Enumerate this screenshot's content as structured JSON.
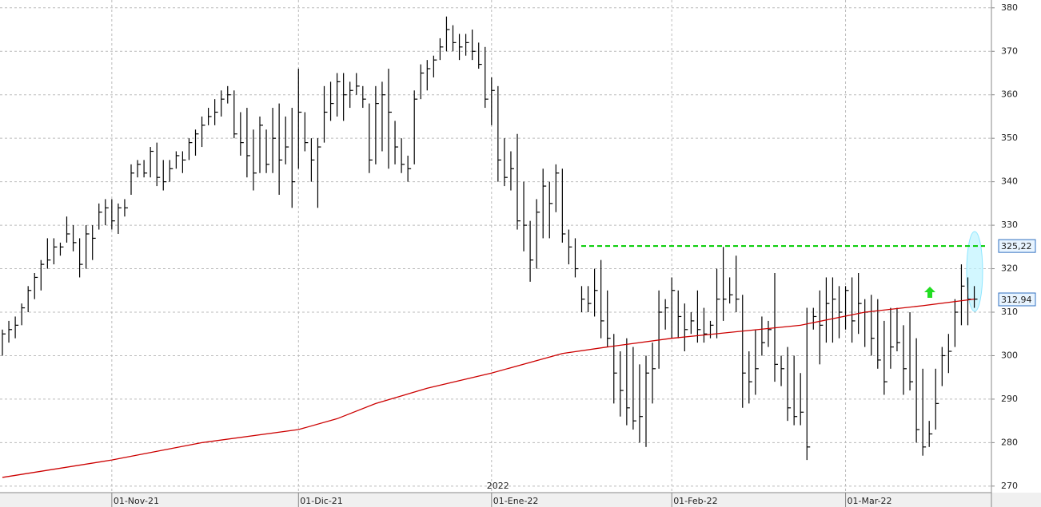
{
  "chart_data": {
    "type": "ohlc",
    "color": "#000000",
    "categories": [
      null,
      null,
      null,
      null,
      null,
      null,
      null,
      null,
      null,
      null,
      null,
      null,
      null,
      null,
      null,
      null,
      null,
      "01-Nov-21",
      null,
      null,
      null,
      null,
      null,
      null,
      null,
      null,
      null,
      null,
      null,
      null,
      null,
      null,
      null,
      null,
      null,
      null,
      null,
      null,
      null,
      null,
      null,
      null,
      null,
      null,
      null,
      null,
      "01-Dic-21",
      null,
      null,
      null,
      null,
      null,
      null,
      null,
      null,
      null,
      null,
      null,
      null,
      null,
      null,
      null,
      null,
      null,
      null,
      null,
      null,
      null,
      null,
      null,
      null,
      null,
      null,
      null,
      null,
      null,
      "01-Ene-22",
      null,
      null,
      null,
      null,
      null,
      null,
      null,
      null,
      null,
      null,
      null,
      null,
      null,
      null,
      null,
      null,
      null,
      null,
      null,
      null,
      null,
      null,
      null,
      null,
      null,
      null,
      null,
      "01-Feb-22",
      null,
      null,
      null,
      null,
      null,
      null,
      null,
      null,
      null,
      null,
      null,
      null,
      null,
      null,
      null,
      null,
      null,
      null,
      null,
      null,
      null,
      null,
      null,
      null,
      null,
      null,
      "01-Mar-22",
      null,
      null,
      null,
      null,
      null,
      null,
      null,
      null,
      null,
      null,
      null,
      null,
      null,
      null,
      null,
      null,
      null,
      null,
      null,
      null
    ],
    "high": [
      306,
      308,
      309,
      312,
      316,
      319,
      322,
      327,
      327,
      326,
      332,
      330,
      327,
      330,
      330,
      335,
      336,
      336,
      335,
      336,
      344,
      345,
      345,
      348,
      349,
      345,
      345,
      347,
      347,
      350,
      352,
      355,
      357,
      359,
      361,
      362,
      361,
      356,
      357,
      352,
      355,
      352,
      357,
      358,
      355,
      357,
      366,
      356,
      350,
      350,
      362,
      363,
      365,
      365,
      363,
      365,
      362,
      358,
      362,
      363,
      366,
      354,
      350,
      346,
      361,
      367,
      368,
      369,
      373,
      378,
      376,
      374,
      374,
      375,
      372,
      371,
      364,
      362,
      350,
      347,
      351,
      340,
      331,
      336,
      343,
      340,
      344,
      343,
      329,
      327,
      316,
      316,
      320,
      322,
      315,
      305,
      301,
      304,
      302,
      298,
      300,
      303,
      315,
      313,
      318,
      315,
      312,
      310,
      315,
      311,
      308,
      320,
      325,
      318,
      323,
      314,
      301,
      306,
      309,
      308,
      319,
      300,
      302,
      300,
      296,
      311,
      311,
      315,
      318,
      318,
      316,
      316,
      318,
      319,
      313,
      314,
      313,
      308,
      311,
      311,
      307,
      310,
      304,
      297,
      285,
      297,
      302,
      305,
      313,
      321,
      318,
      316
    ],
    "low": [
      300,
      303,
      304,
      307,
      310,
      313,
      315,
      320,
      321,
      323,
      326,
      324,
      318,
      320,
      322,
      329,
      330,
      329,
      328,
      332,
      337,
      341,
      341,
      341,
      339,
      338,
      340,
      343,
      342,
      345,
      346,
      348,
      353,
      353,
      355,
      358,
      350,
      346,
      341,
      338,
      342,
      342,
      342,
      337,
      344,
      334,
      343,
      347,
      340,
      334,
      349,
      354,
      355,
      354,
      357,
      360,
      357,
      342,
      344,
      347,
      343,
      344,
      342,
      340,
      344,
      359,
      361,
      364,
      368,
      370,
      370,
      368,
      369,
      368,
      366,
      357,
      353,
      340,
      339,
      338,
      329,
      324,
      317,
      320,
      327,
      327,
      333,
      326,
      321,
      318,
      310,
      310,
      309,
      304,
      302,
      289,
      286,
      284,
      283,
      280,
      279,
      289,
      297,
      306,
      304,
      304,
      301,
      305,
      303,
      303,
      304,
      304,
      308,
      312,
      310,
      288,
      289,
      291,
      300,
      302,
      294,
      293,
      285,
      284,
      284,
      276,
      306,
      298,
      303,
      303,
      304,
      306,
      303,
      305,
      302,
      300,
      297,
      291,
      297,
      301,
      291,
      292,
      280,
      277,
      279,
      283,
      293,
      296,
      302,
      307,
      307,
      311
    ],
    "close": [
      305,
      306,
      307,
      311,
      315,
      318,
      321,
      322,
      325,
      325,
      328,
      326,
      321,
      328,
      327,
      333,
      334,
      331,
      334,
      334,
      342,
      344,
      342,
      347,
      341,
      340,
      343,
      346,
      345,
      349,
      351,
      353,
      355,
      356,
      359,
      360,
      351,
      349,
      346,
      342,
      353,
      344,
      350,
      345,
      348,
      340,
      356,
      349,
      345,
      348,
      356,
      358,
      363,
      360,
      361,
      362,
      359,
      345,
      358,
      360,
      356,
      348,
      344,
      343,
      359,
      365,
      366,
      368,
      371,
      375,
      372,
      371,
      372,
      370,
      367,
      359,
      361,
      345,
      341,
      343,
      331,
      330,
      322,
      333,
      339,
      335,
      342,
      328,
      325,
      320,
      313,
      312,
      315,
      308,
      304,
      296,
      292,
      288,
      285,
      286,
      296,
      297,
      310,
      311,
      315,
      309,
      306,
      308,
      306,
      305,
      307,
      313,
      313,
      314,
      313,
      296,
      294,
      297,
      303,
      306,
      298,
      297,
      288,
      286,
      287,
      279,
      309,
      307,
      312,
      313,
      310,
      315,
      308,
      312,
      310,
      304,
      299,
      294,
      302,
      303,
      297,
      294,
      283,
      279,
      282,
      289,
      300,
      301,
      310,
      316,
      313,
      313
    ],
    "ylim": [
      268.5,
      381.8
    ],
    "yticks": [
      270,
      280,
      290,
      300,
      310,
      320,
      330,
      340,
      350,
      360,
      370,
      380
    ],
    "grid": true,
    "year_label": "2022",
    "moving_average": {
      "color": "#cc0000",
      "x": [
        0,
        17,
        31,
        46,
        52,
        58,
        66,
        76,
        87,
        94,
        104,
        114,
        124,
        134,
        143,
        151
      ],
      "values": [
        272,
        276,
        280,
        283,
        285.5,
        289,
        292.5,
        296,
        300.5,
        302,
        304,
        305.5,
        307,
        310,
        311.5,
        313
      ]
    },
    "reference_line": {
      "value": 325.22,
      "color": "#00cc00"
    },
    "price_labels": [
      {
        "value": 325.22,
        "label": "325,22"
      },
      {
        "value": 312.94,
        "label": "312,94"
      }
    ]
  }
}
